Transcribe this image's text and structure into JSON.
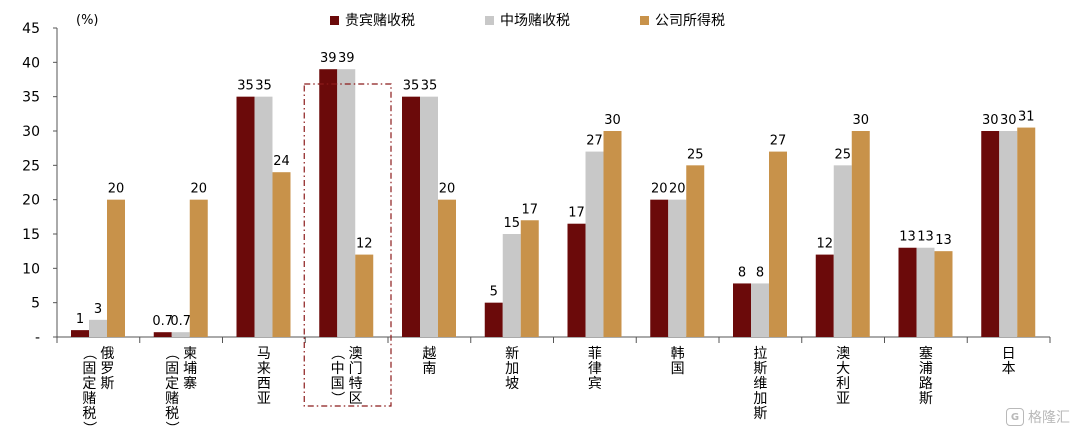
{
  "chart_data": {
    "type": "bar",
    "unit_label": "(%)",
    "categories": [
      "俄罗斯（固定赌税）",
      "柬埔寨（固定赌税）",
      "马来西亚",
      "澳门特区（中国）",
      "越南",
      "新加坡",
      "菲律宾",
      "韩国",
      "拉斯维加斯",
      "澳大利亚",
      "塞浦路斯",
      "日本"
    ],
    "category_lines": [
      [
        "俄罗斯",
        "（固定赌税）"
      ],
      [
        "柬埔寨",
        "（固定赌税）"
      ],
      [
        "马来西亚"
      ],
      [
        "澳门特区",
        "（中国）"
      ],
      [
        "越南"
      ],
      [
        "新加坡"
      ],
      [
        "菲律宾"
      ],
      [
        "韩国"
      ],
      [
        "拉斯维加斯"
      ],
      [
        "澳大利亚"
      ],
      [
        "塞浦路斯"
      ],
      [
        "日本"
      ]
    ],
    "series": [
      {
        "name": "贵宾赌收税",
        "color": "#6b0a0a",
        "values": [
          1,
          0.7,
          35,
          39,
          35,
          5,
          16.5,
          20,
          7.8,
          12,
          13,
          30
        ],
        "labels": [
          "1",
          "0.7",
          "35",
          "39",
          "35",
          "5",
          "17",
          "20",
          "8",
          "12",
          "13",
          "30"
        ]
      },
      {
        "name": "中场赌收税",
        "color": "#c8c8c8",
        "values": [
          2.5,
          0.7,
          35,
          39,
          35,
          15,
          27,
          20,
          7.8,
          25,
          13,
          30
        ],
        "labels": [
          "3",
          "0.7",
          "35",
          "39",
          "35",
          "15",
          "27",
          "20",
          "8",
          "25",
          "13",
          "30"
        ]
      },
      {
        "name": "公司所得税",
        "color": "#c8924a",
        "values": [
          20,
          20,
          24,
          12,
          20,
          17,
          30,
          25,
          27,
          30,
          12.5,
          30.5
        ],
        "labels": [
          "20",
          "20",
          "24",
          "12",
          "20",
          "17",
          "30",
          "25",
          "27",
          "30",
          "13",
          "31"
        ]
      }
    ],
    "yticks": [
      "-",
      "5",
      "10",
      "15",
      "20",
      "25",
      "30",
      "35",
      "40",
      "45"
    ],
    "ylim": [
      0,
      45
    ],
    "grid": false,
    "legend_position": "top",
    "highlight_category": "澳门特区（中国）"
  },
  "watermark": {
    "icon": "G",
    "text": "格隆汇"
  }
}
